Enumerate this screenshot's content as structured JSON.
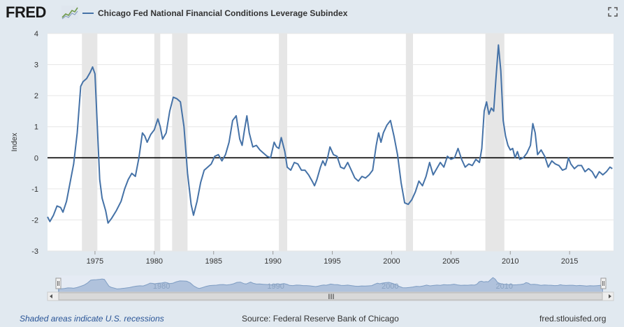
{
  "header": {
    "logo_text": "FRED",
    "logo_icon": "fred-graph-logo-icon",
    "fullscreen_icon": "fullscreen-icon"
  },
  "colors": {
    "series": "#4572a7",
    "recession": "#e6e6e6",
    "zero_line": "#000000",
    "navigator_fill": "#9fb5d3",
    "navigator_mask": "#c6d3e6"
  },
  "footer": {
    "recession_note": "Shaded areas indicate U.S. recessions",
    "source": "Source: Federal Reserve Bank of Chicago",
    "site": "fred.stlouisfed.org"
  },
  "navigator": {
    "labels": [
      "1980",
      "1990",
      "2000",
      "2010"
    ],
    "scroll_grip": "III"
  },
  "chart_data": {
    "type": "line",
    "title": "",
    "legend": "Chicago Fed National Financial Conditions Leverage Subindex",
    "xlabel": "",
    "ylabel": "Index",
    "xlim": [
      1971.0,
      2018.7
    ],
    "ylim": [
      -3,
      4
    ],
    "yticks": [
      -3,
      -2,
      -1,
      0,
      1,
      2,
      3,
      4
    ],
    "xticks": [
      1975,
      1980,
      1985,
      1990,
      1995,
      2000,
      2005,
      2010,
      2015
    ],
    "zero_line": true,
    "recessions": [
      [
        1973.9,
        1975.2
      ],
      [
        1980.0,
        1980.5
      ],
      [
        1981.5,
        1982.8
      ],
      [
        1990.5,
        1991.2
      ],
      [
        2001.2,
        2001.8
      ],
      [
        2007.9,
        2009.5
      ]
    ],
    "series": [
      {
        "name": "Chicago Fed National Financial Conditions Leverage Subindex",
        "points": [
          [
            1971.0,
            -1.9
          ],
          [
            1971.2,
            -2.05
          ],
          [
            1971.5,
            -1.85
          ],
          [
            1971.8,
            -1.55
          ],
          [
            1972.1,
            -1.6
          ],
          [
            1972.3,
            -1.75
          ],
          [
            1972.6,
            -1.4
          ],
          [
            1972.9,
            -0.8
          ],
          [
            1973.2,
            -0.2
          ],
          [
            1973.5,
            0.8
          ],
          [
            1973.8,
            2.3
          ],
          [
            1974.0,
            2.45
          ],
          [
            1974.3,
            2.55
          ],
          [
            1974.6,
            2.75
          ],
          [
            1974.8,
            2.92
          ],
          [
            1975.0,
            2.7
          ],
          [
            1975.2,
            1.0
          ],
          [
            1975.4,
            -0.7
          ],
          [
            1975.6,
            -1.3
          ],
          [
            1975.9,
            -1.7
          ],
          [
            1976.1,
            -2.1
          ],
          [
            1976.4,
            -1.95
          ],
          [
            1976.8,
            -1.7
          ],
          [
            1977.2,
            -1.4
          ],
          [
            1977.5,
            -1.0
          ],
          [
            1977.8,
            -0.7
          ],
          [
            1978.1,
            -0.5
          ],
          [
            1978.4,
            -0.6
          ],
          [
            1978.7,
            0.0
          ],
          [
            1979.0,
            0.8
          ],
          [
            1979.2,
            0.7
          ],
          [
            1979.4,
            0.5
          ],
          [
            1979.7,
            0.75
          ],
          [
            1980.0,
            0.9
          ],
          [
            1980.3,
            1.25
          ],
          [
            1980.5,
            1.0
          ],
          [
            1980.7,
            0.6
          ],
          [
            1981.0,
            0.8
          ],
          [
            1981.3,
            1.5
          ],
          [
            1981.6,
            1.95
          ],
          [
            1981.9,
            1.9
          ],
          [
            1982.2,
            1.8
          ],
          [
            1982.5,
            1.0
          ],
          [
            1982.8,
            -0.5
          ],
          [
            1983.1,
            -1.5
          ],
          [
            1983.3,
            -1.85
          ],
          [
            1983.6,
            -1.4
          ],
          [
            1983.9,
            -0.8
          ],
          [
            1984.2,
            -0.4
          ],
          [
            1984.5,
            -0.3
          ],
          [
            1984.8,
            -0.2
          ],
          [
            1985.1,
            0.05
          ],
          [
            1985.4,
            0.1
          ],
          [
            1985.7,
            -0.1
          ],
          [
            1986.0,
            0.1
          ],
          [
            1986.3,
            0.5
          ],
          [
            1986.6,
            1.2
          ],
          [
            1986.9,
            1.35
          ],
          [
            1987.2,
            0.6
          ],
          [
            1987.4,
            0.4
          ],
          [
            1987.6,
            0.9
          ],
          [
            1987.8,
            1.35
          ],
          [
            1988.0,
            0.8
          ],
          [
            1988.3,
            0.35
          ],
          [
            1988.6,
            0.4
          ],
          [
            1988.9,
            0.25
          ],
          [
            1989.2,
            0.15
          ],
          [
            1989.5,
            0.05
          ],
          [
            1989.8,
            0.0
          ],
          [
            1990.1,
            0.5
          ],
          [
            1990.3,
            0.35
          ],
          [
            1990.5,
            0.3
          ],
          [
            1990.7,
            0.65
          ],
          [
            1991.0,
            0.2
          ],
          [
            1991.2,
            -0.3
          ],
          [
            1991.5,
            -0.4
          ],
          [
            1991.8,
            -0.15
          ],
          [
            1992.1,
            -0.2
          ],
          [
            1992.4,
            -0.4
          ],
          [
            1992.7,
            -0.4
          ],
          [
            1993.0,
            -0.55
          ],
          [
            1993.3,
            -0.75
          ],
          [
            1993.5,
            -0.9
          ],
          [
            1993.7,
            -0.7
          ],
          [
            1994.0,
            -0.3
          ],
          [
            1994.2,
            -0.1
          ],
          [
            1994.4,
            -0.25
          ],
          [
            1994.6,
            0.0
          ],
          [
            1994.8,
            0.35
          ],
          [
            1995.1,
            0.1
          ],
          [
            1995.4,
            0.05
          ],
          [
            1995.7,
            -0.3
          ],
          [
            1996.0,
            -0.35
          ],
          [
            1996.3,
            -0.15
          ],
          [
            1996.6,
            -0.4
          ],
          [
            1996.9,
            -0.65
          ],
          [
            1997.2,
            -0.75
          ],
          [
            1997.5,
            -0.6
          ],
          [
            1997.8,
            -0.65
          ],
          [
            1998.1,
            -0.55
          ],
          [
            1998.4,
            -0.4
          ],
          [
            1998.7,
            0.4
          ],
          [
            1998.9,
            0.8
          ],
          [
            1999.1,
            0.5
          ],
          [
            1999.3,
            0.8
          ],
          [
            1999.6,
            1.05
          ],
          [
            1999.9,
            1.2
          ],
          [
            2000.2,
            0.7
          ],
          [
            2000.5,
            0.1
          ],
          [
            2000.8,
            -0.8
          ],
          [
            2001.1,
            -1.45
          ],
          [
            2001.4,
            -1.5
          ],
          [
            2001.7,
            -1.35
          ],
          [
            2002.0,
            -1.1
          ],
          [
            2002.3,
            -0.75
          ],
          [
            2002.6,
            -0.9
          ],
          [
            2002.9,
            -0.6
          ],
          [
            2003.2,
            -0.15
          ],
          [
            2003.5,
            -0.55
          ],
          [
            2003.8,
            -0.35
          ],
          [
            2004.1,
            -0.15
          ],
          [
            2004.4,
            -0.3
          ],
          [
            2004.7,
            0.05
          ],
          [
            2005.0,
            -0.05
          ],
          [
            2005.3,
            0.0
          ],
          [
            2005.6,
            0.3
          ],
          [
            2005.9,
            -0.05
          ],
          [
            2006.2,
            -0.3
          ],
          [
            2006.5,
            -0.2
          ],
          [
            2006.8,
            -0.25
          ],
          [
            2007.1,
            -0.05
          ],
          [
            2007.4,
            -0.15
          ],
          [
            2007.6,
            0.3
          ],
          [
            2007.8,
            1.5
          ],
          [
            2008.0,
            1.8
          ],
          [
            2008.2,
            1.4
          ],
          [
            2008.4,
            1.6
          ],
          [
            2008.6,
            1.5
          ],
          [
            2008.8,
            2.6
          ],
          [
            2009.0,
            3.63
          ],
          [
            2009.2,
            2.8
          ],
          [
            2009.4,
            1.2
          ],
          [
            2009.6,
            0.7
          ],
          [
            2009.8,
            0.4
          ],
          [
            2010.0,
            0.25
          ],
          [
            2010.2,
            0.3
          ],
          [
            2010.4,
            0.0
          ],
          [
            2010.6,
            0.2
          ],
          [
            2010.8,
            -0.05
          ],
          [
            2011.1,
            0.0
          ],
          [
            2011.4,
            0.15
          ],
          [
            2011.7,
            0.4
          ],
          [
            2011.9,
            1.1
          ],
          [
            2012.1,
            0.8
          ],
          [
            2012.3,
            0.1
          ],
          [
            2012.6,
            0.25
          ],
          [
            2012.9,
            0.05
          ],
          [
            2013.2,
            -0.3
          ],
          [
            2013.5,
            -0.1
          ],
          [
            2013.8,
            -0.2
          ],
          [
            2014.1,
            -0.25
          ],
          [
            2014.4,
            -0.4
          ],
          [
            2014.7,
            -0.35
          ],
          [
            2014.9,
            0.0
          ],
          [
            2015.1,
            -0.2
          ],
          [
            2015.4,
            -0.35
          ],
          [
            2015.7,
            -0.25
          ],
          [
            2016.0,
            -0.25
          ],
          [
            2016.3,
            -0.45
          ],
          [
            2016.6,
            -0.35
          ],
          [
            2016.9,
            -0.45
          ],
          [
            2017.2,
            -0.65
          ],
          [
            2017.5,
            -0.45
          ],
          [
            2017.8,
            -0.55
          ],
          [
            2018.1,
            -0.45
          ],
          [
            2018.4,
            -0.3
          ],
          [
            2018.6,
            -0.35
          ]
        ]
      }
    ]
  }
}
